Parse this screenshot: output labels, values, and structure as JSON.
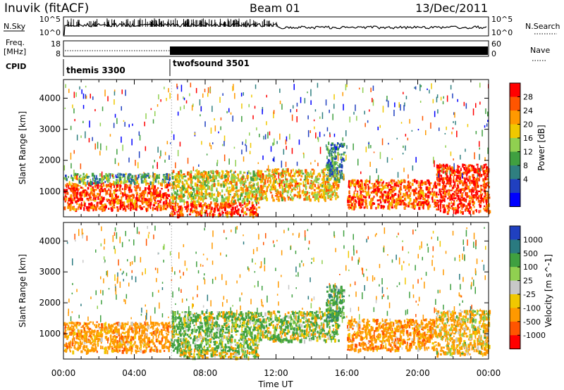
{
  "header": {
    "station": "Inuvik (fitACF)",
    "beam": "Beam 01",
    "date": "13/Dec/2011"
  },
  "top_panels": {
    "nsky": {
      "label": "N.Sky",
      "ticks": [
        "10^5",
        "10^0"
      ]
    },
    "nsearch": {
      "label": "N.Search",
      "ticks": [
        "10^5",
        "10^0"
      ]
    },
    "freq": {
      "label_line1": "Freq.",
      "label_line2": "[MHz]",
      "ticks": [
        "18",
        "8"
      ]
    },
    "nave": {
      "label": "Nave",
      "ticks": [
        "60",
        "0"
      ]
    },
    "cpid": {
      "label": "CPID",
      "segments": [
        {
          "name": "themis 3300",
          "start_hour": 0,
          "end_hour": 6.1
        },
        {
          "name": "twofsound 3501",
          "start_hour": 6.1,
          "end_hour": 24
        }
      ]
    }
  },
  "power_panel": {
    "ylabel": "Slant Range [km]",
    "colorbar_label": "Power [dB]",
    "colorbar_ticks": [
      "28",
      "24",
      "20",
      "16",
      "12",
      "8",
      "4"
    ],
    "colorbar_colors": [
      "#ff0000",
      "#ff5500",
      "#ff9900",
      "#f0c800",
      "#90d050",
      "#40a040",
      "#2f7f80",
      "#2040c0",
      "#0000ff"
    ]
  },
  "velocity_panel": {
    "ylabel": "Slant Range [km]",
    "colorbar_label": "Velocity [m s^-1]",
    "colorbar_ticks": [
      "1000",
      "500",
      "100",
      "25",
      "-25",
      "-100",
      "-500",
      "-1000"
    ],
    "colorbar_colors": [
      "#2040c0",
      "#2a7a80",
      "#3fa040",
      "#90d050",
      "#c8c8c8",
      "#f0c800",
      "#ff9900",
      "#ff5500",
      "#ff0000"
    ]
  },
  "xaxis": {
    "label": "Time UT",
    "ticks": [
      "00:00",
      "04:00",
      "08:00",
      "12:00",
      "16:00",
      "20:00",
      "00:00"
    ]
  },
  "chart_data": [
    {
      "type": "heatmap",
      "title": "Power",
      "xlabel": "Time UT",
      "ylabel": "Slant Range [km]",
      "xlim_hours": [
        0,
        24
      ],
      "ylim": [
        180,
        4600
      ],
      "yticks": [
        1000,
        2000,
        3000,
        4000
      ],
      "zlim": [
        0,
        30
      ],
      "zunit": "dB",
      "echo_bands": [
        {
          "t0": 0.0,
          "t1": 6.0,
          "r0": 450,
          "r1": 1300,
          "z": 26
        },
        {
          "t0": 0.0,
          "t1": 6.0,
          "r0": 1300,
          "r1": 1600,
          "z": 12
        },
        {
          "t0": 6.0,
          "t1": 11.0,
          "r0": 250,
          "r1": 700,
          "z": 26
        },
        {
          "t0": 6.0,
          "t1": 11.0,
          "r0": 700,
          "r1": 1700,
          "z": 18
        },
        {
          "t0": 11.0,
          "t1": 15.5,
          "r0": 750,
          "r1": 1750,
          "z": 20
        },
        {
          "t0": 14.8,
          "t1": 15.8,
          "r0": 1400,
          "r1": 2600,
          "z": 10
        },
        {
          "t0": 16.0,
          "t1": 21.0,
          "r0": 500,
          "r1": 1400,
          "z": 25
        },
        {
          "t0": 21.0,
          "t1": 24.0,
          "r0": 350,
          "r1": 1900,
          "z": 28
        }
      ]
    },
    {
      "type": "heatmap",
      "title": "Velocity",
      "xlabel": "Time UT",
      "ylabel": "Slant Range [km]",
      "xlim_hours": [
        0,
        24
      ],
      "ylim": [
        180,
        4600
      ],
      "yticks": [
        1000,
        2000,
        3000,
        4000
      ],
      "zlim": [
        -1000,
        1000
      ],
      "zunit": "m s^-1",
      "echo_bands": [
        {
          "t0": 0.0,
          "t1": 6.0,
          "r0": 450,
          "r1": 1400,
          "v": -300
        },
        {
          "t0": 6.0,
          "t1": 11.0,
          "r0": 450,
          "r1": 1750,
          "v": 150
        },
        {
          "t0": 6.5,
          "t1": 11.0,
          "r0": 250,
          "r1": 500,
          "v": 0
        },
        {
          "t0": 11.0,
          "t1": 15.5,
          "r0": 800,
          "r1": 1750,
          "v": 100
        },
        {
          "t0": 14.8,
          "t1": 15.8,
          "r0": 1400,
          "r1": 2600,
          "v": 300
        },
        {
          "t0": 16.0,
          "t1": 21.0,
          "r0": 500,
          "r1": 1500,
          "v": -300
        },
        {
          "t0": 21.0,
          "t1": 24.0,
          "r0": 350,
          "r1": 1800,
          "v": -150
        }
      ]
    }
  ]
}
